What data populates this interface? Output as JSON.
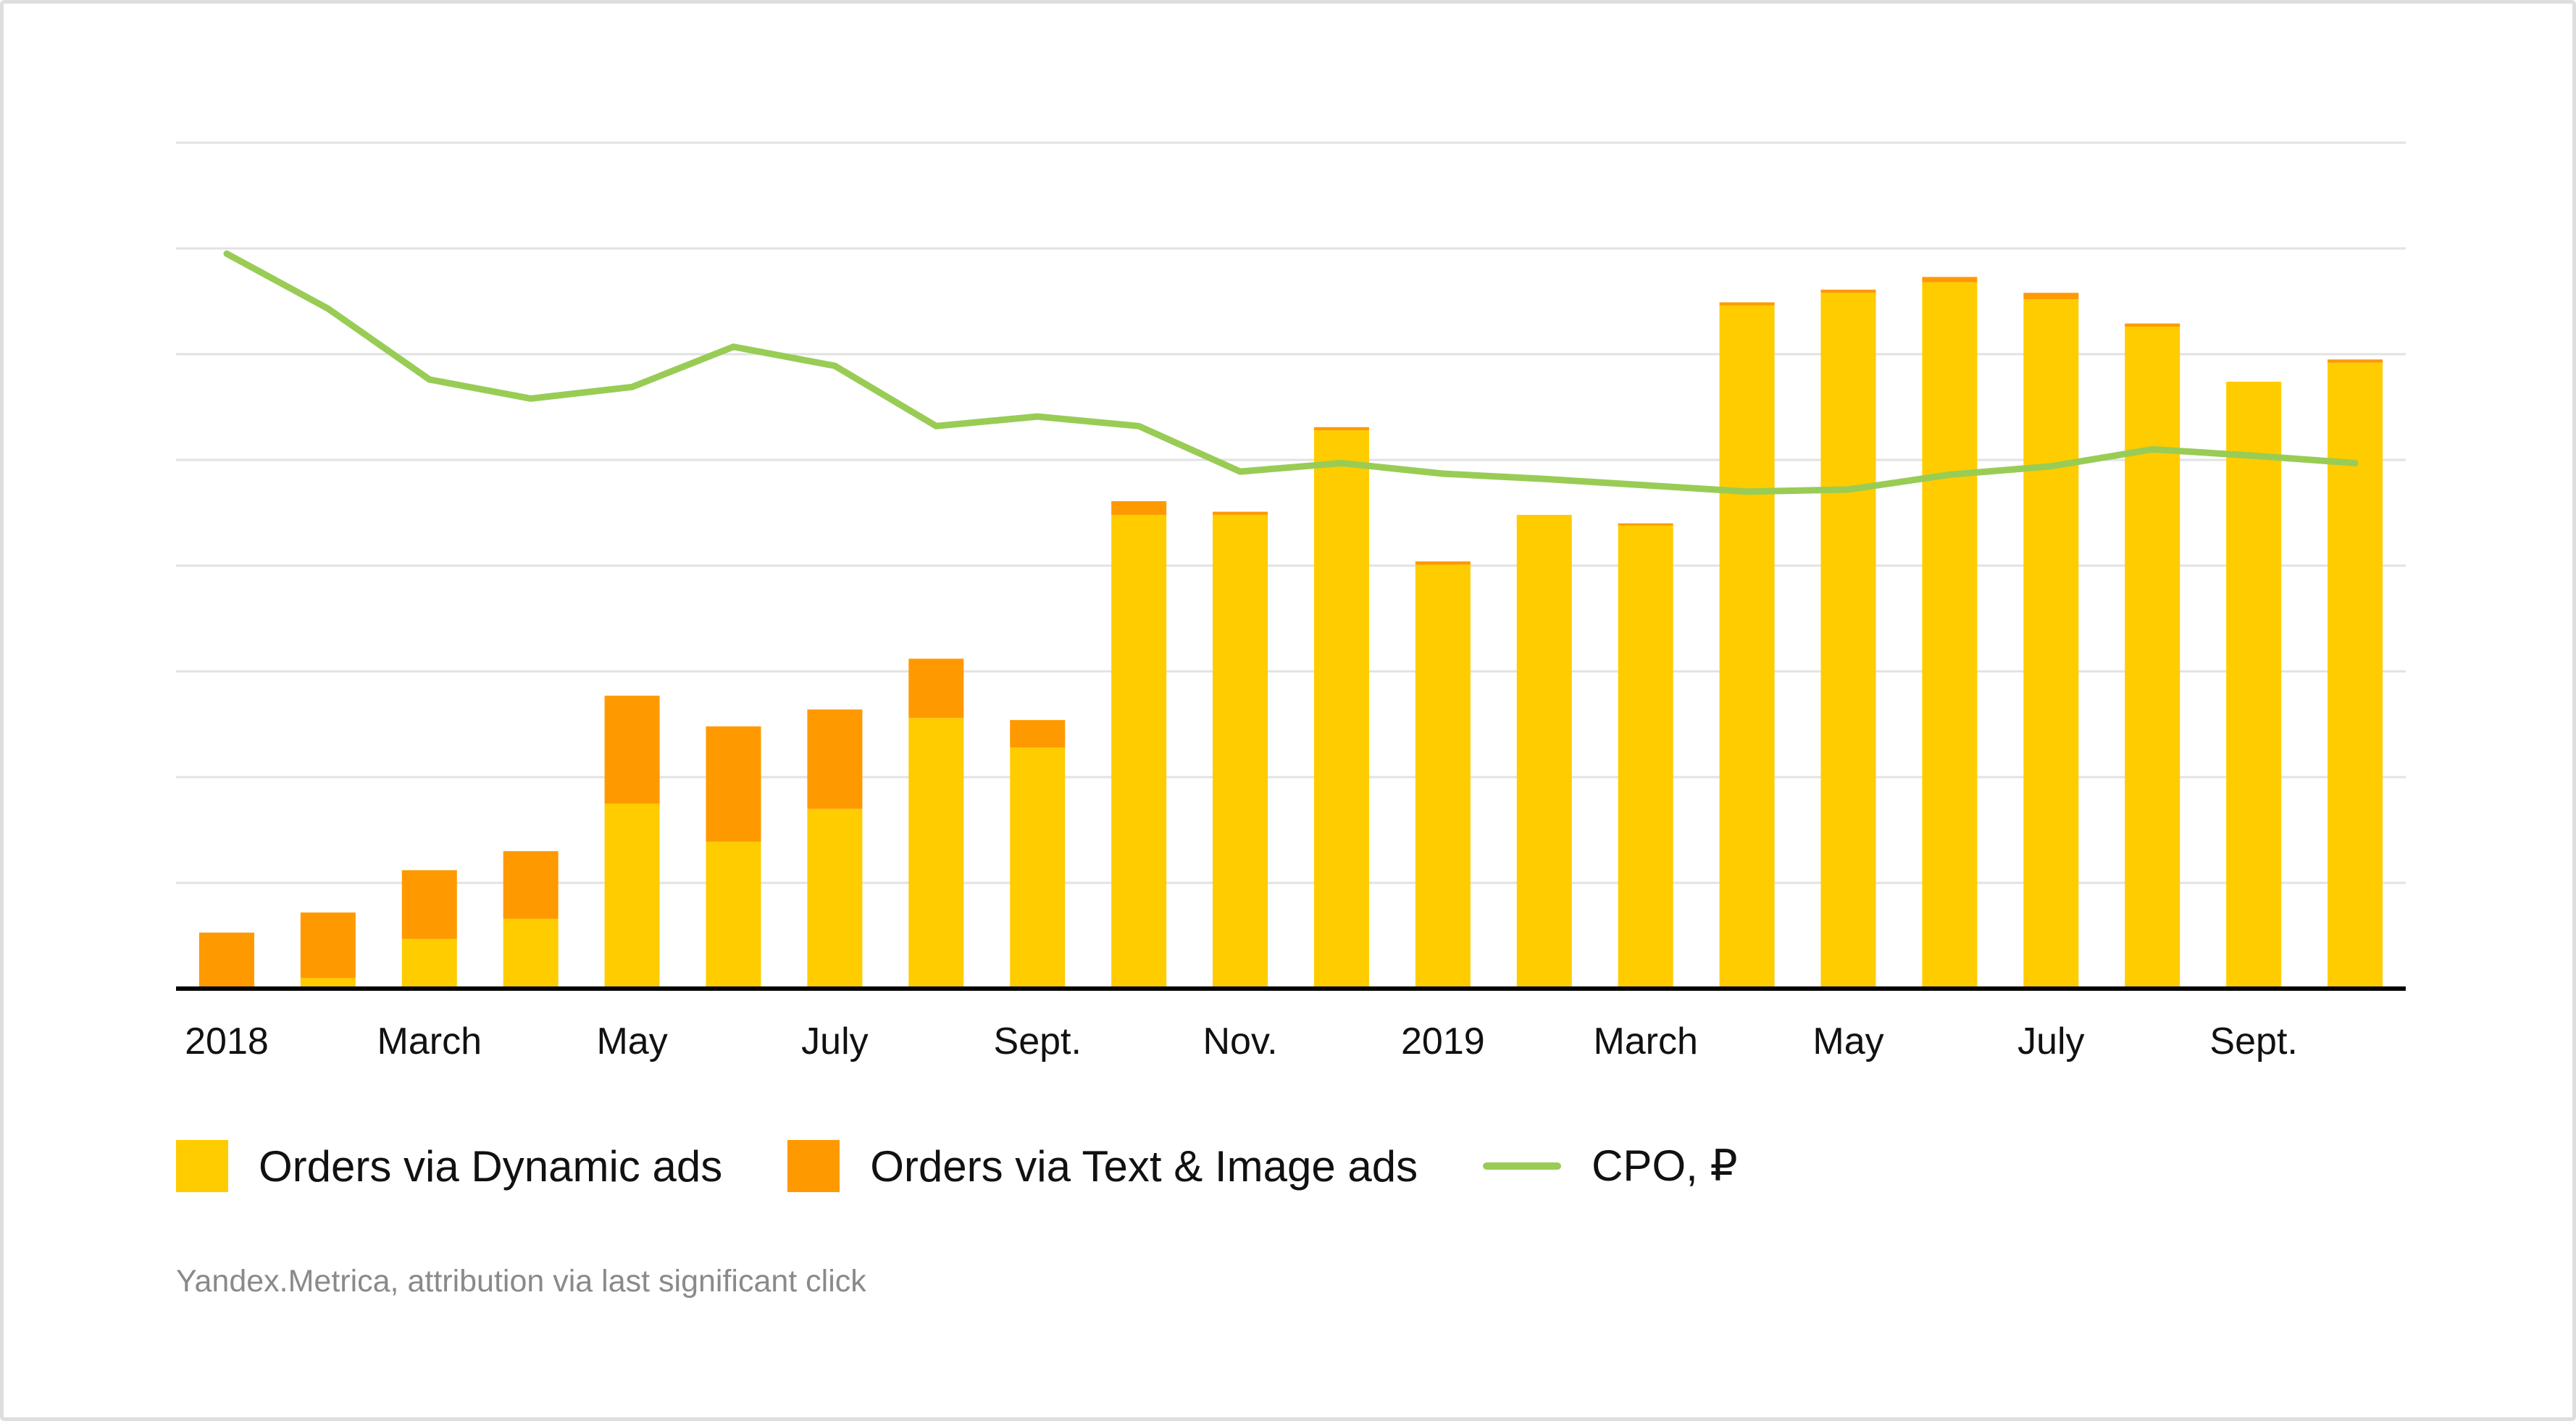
{
  "chart_data": {
    "type": "bar",
    "stacked": true,
    "categories": [
      "Jan 2018",
      "Feb 2018",
      "Mar 2018",
      "Apr 2018",
      "May 2018",
      "Jun 2018",
      "Jul 2018",
      "Aug 2018",
      "Sep 2018",
      "Oct 2018",
      "Nov 2018",
      "Dec 2018",
      "Jan 2019",
      "Feb 2019",
      "Mar 2019",
      "Apr 2019",
      "May 2019",
      "Jun 2019",
      "Jul 2019",
      "Aug 2019",
      "Sep 2019",
      "Oct 2019"
    ],
    "tick_labels": [
      {
        "index": 0,
        "label": "2018"
      },
      {
        "index": 2,
        "label": "March"
      },
      {
        "index": 4,
        "label": "May"
      },
      {
        "index": 6,
        "label": "July"
      },
      {
        "index": 8,
        "label": "Sept."
      },
      {
        "index": 10,
        "label": "Nov."
      },
      {
        "index": 12,
        "label": "2019"
      },
      {
        "index": 14,
        "label": "March"
      },
      {
        "index": 16,
        "label": "May"
      },
      {
        "index": 18,
        "label": "July"
      },
      {
        "index": 20,
        "label": "Sept."
      }
    ],
    "series": [
      {
        "name": "Orders via Dynamic ads",
        "kind": "bar",
        "color": "#ffcc00",
        "values": [
          0,
          0.1,
          0.47,
          0.66,
          1.75,
          1.39,
          1.7,
          2.56,
          2.28,
          4.48,
          4.48,
          5.28,
          4.01,
          4.48,
          4.38,
          6.46,
          6.58,
          6.68,
          6.52,
          6.26,
          5.74,
          5.92
        ]
      },
      {
        "name": "Orders via Text & Image ads",
        "kind": "bar",
        "color": "#ff9900",
        "values": [
          0.53,
          0.62,
          0.65,
          0.64,
          1.02,
          1.09,
          0.94,
          0.56,
          0.26,
          0.13,
          0.03,
          0.03,
          0.03,
          0,
          0.02,
          0.03,
          0.03,
          0.05,
          0.06,
          0.03,
          0,
          0.03
        ]
      },
      {
        "name": "CPO, ₽",
        "kind": "line",
        "color": "#99cc55",
        "values": [
          6.95,
          6.43,
          5.76,
          5.58,
          5.69,
          6.07,
          5.89,
          5.32,
          5.41,
          5.32,
          4.89,
          4.97,
          4.87,
          4.82,
          4.76,
          4.7,
          4.72,
          4.86,
          4.94,
          5.1,
          5.04,
          4.97
        ]
      }
    ],
    "ylim": [
      0,
      8
    ],
    "ytick_count": 8,
    "grid": true,
    "axis_labels_shown": false,
    "legend_position": "bottom"
  },
  "legend": {
    "dynamic_label": "Orders via Dynamic ads",
    "text_image_label": "Orders via Text & Image ads",
    "cpo_label": "CPO, ₽"
  },
  "source_note": "Yandex.Metrica, attribution via last significant click"
}
